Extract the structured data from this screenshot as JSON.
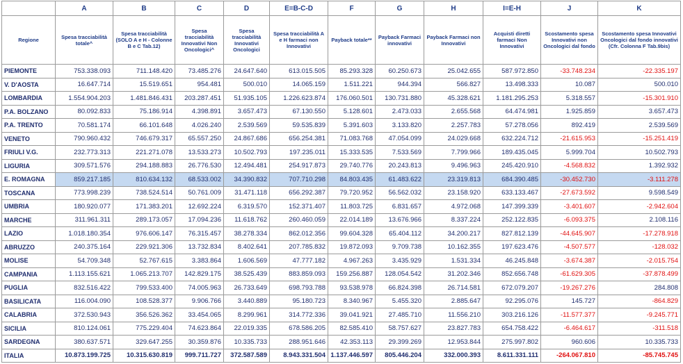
{
  "table": {
    "column_letters": [
      "A",
      "B",
      "C",
      "D",
      "E=B-C-D",
      "F",
      "G",
      "H",
      "I=E-H",
      "J",
      "K"
    ],
    "headers": [
      "Regione",
      "Spesa tracciabilità totale^",
      "Spesa tracciabilità (SOLO A e H - Colonne B e C Tab.12)",
      "Spesa tracciabilità Innovativi Non Oncologici^",
      "Spesa tracciabilità Innovativi Oncologici",
      "Spesa tracciabilità A e H farmaci non Innovativi",
      "Payback totale**",
      "Payback Farmaci innovativi",
      "Payback Farmaci non Innovativi",
      "Acquisti diretti farmaci Non Innovativi",
      "Scostamento spesa Innovativi non Oncologici dal fondo",
      "Scostamento spesa Innovativi Oncologici dal fondo innovativi (Cfr. Colonna F Tab.9bis)"
    ],
    "rows": [
      [
        "PIEMONTE",
        "753.338.093",
        "711.148.420",
        "73.485.276",
        "24.647.640",
        "613.015.505",
        "85.293.328",
        "60.250.673",
        "25.042.655",
        "587.972.850",
        "-33.748.234",
        "-22.335.197"
      ],
      [
        "V. D'AOSTA",
        "16.647.714",
        "15.519.651",
        "954.481",
        "500.010",
        "14.065.159",
        "1.511.221",
        "944.394",
        "566.827",
        "13.498.333",
        "10.087",
        "500.010"
      ],
      [
        "LOMBARDIA",
        "1.554.904.203",
        "1.481.846.431",
        "203.287.451",
        "51.935.105",
        "1.226.623.874",
        "176.060.501",
        "130.731.880",
        "45.328.621",
        "1.181.295.253",
        "5.318.557",
        "-15.301.910"
      ],
      [
        "P.A. BOLZANO",
        "80.092.833",
        "75.186.914",
        "4.398.891",
        "3.657.473",
        "67.130.550",
        "5.128.601",
        "2.473.033",
        "2.655.568",
        "64.474.981",
        "1.925.859",
        "3.657.473"
      ],
      [
        "P.A. TRENTO",
        "70.581.174",
        "66.101.648",
        "4.026.240",
        "2.539.569",
        "59.535.839",
        "5.391.603",
        "3.133.820",
        "2.257.783",
        "57.278.056",
        "892.419",
        "2.539.569"
      ],
      [
        "VENETO",
        "790.960.432",
        "746.679.317",
        "65.557.250",
        "24.867.686",
        "656.254.381",
        "71.083.768",
        "47.054.099",
        "24.029.668",
        "632.224.712",
        "-21.615.953",
        "-15.251.419"
      ],
      [
        "FRIULI V.G.",
        "232.773.313",
        "221.271.078",
        "13.533.273",
        "10.502.793",
        "197.235.011",
        "15.333.535",
        "7.533.569",
        "7.799.966",
        "189.435.045",
        "5.999.704",
        "10.502.793"
      ],
      [
        "LIGURIA",
        "309.571.576",
        "294.188.883",
        "26.776.530",
        "12.494.481",
        "254.917.873",
        "29.740.776",
        "20.243.813",
        "9.496.963",
        "245.420.910",
        "-4.568.832",
        "1.392.932"
      ],
      [
        "E. ROMAGNA",
        "859.217.185",
        "810.634.132",
        "68.533.002",
        "34.390.832",
        "707.710.298",
        "84.803.435",
        "61.483.622",
        "23.319.813",
        "684.390.485",
        "-30.452.730",
        "-3.111.278"
      ],
      [
        "TOSCANA",
        "773.998.239",
        "738.524.514",
        "50.761.009",
        "31.471.118",
        "656.292.387",
        "79.720.952",
        "56.562.032",
        "23.158.920",
        "633.133.467",
        "-27.673.592",
        "9.598.549"
      ],
      [
        "UMBRIA",
        "180.920.077",
        "171.383.201",
        "12.692.224",
        "6.319.570",
        "152.371.407",
        "11.803.725",
        "6.831.657",
        "4.972.068",
        "147.399.339",
        "-3.401.607",
        "-2.942.604"
      ],
      [
        "MARCHE",
        "311.961.311",
        "289.173.057",
        "17.094.236",
        "11.618.762",
        "260.460.059",
        "22.014.189",
        "13.676.966",
        "8.337.224",
        "252.122.835",
        "-6.093.375",
        "2.108.116"
      ],
      [
        "LAZIO",
        "1.018.180.354",
        "976.606.147",
        "76.315.457",
        "38.278.334",
        "862.012.356",
        "99.604.328",
        "65.404.112",
        "34.200.217",
        "827.812.139",
        "-44.645.907",
        "-17.278.918"
      ],
      [
        "ABRUZZO",
        "240.375.164",
        "229.921.306",
        "13.732.834",
        "8.402.641",
        "207.785.832",
        "19.872.093",
        "9.709.738",
        "10.162.355",
        "197.623.476",
        "-4.507.577",
        "-128.032"
      ],
      [
        "MOLISE",
        "54.709.348",
        "52.767.615",
        "3.383.864",
        "1.606.569",
        "47.777.182",
        "4.967.263",
        "3.435.929",
        "1.531.334",
        "46.245.848",
        "-3.674.387",
        "-2.015.754"
      ],
      [
        "CAMPANIA",
        "1.113.155.621",
        "1.065.213.707",
        "142.829.175",
        "38.525.439",
        "883.859.093",
        "159.256.887",
        "128.054.542",
        "31.202.346",
        "852.656.748",
        "-61.629.305",
        "-37.878.499"
      ],
      [
        "PUGLIA",
        "832.516.422",
        "799.533.400",
        "74.005.963",
        "26.733.649",
        "698.793.788",
        "93.538.978",
        "66.824.398",
        "26.714.581",
        "672.079.207",
        "-19.267.276",
        "284.808"
      ],
      [
        "BASILICATA",
        "116.004.090",
        "108.528.377",
        "9.906.766",
        "3.440.889",
        "95.180.723",
        "8.340.967",
        "5.455.320",
        "2.885.647",
        "92.295.076",
        "145.727",
        "-864.829"
      ],
      [
        "CALABRIA",
        "372.530.943",
        "356.526.362",
        "33.454.065",
        "8.299.961",
        "314.772.336",
        "39.041.921",
        "27.485.710",
        "11.556.210",
        "303.216.126",
        "-11.577.377",
        "-9.245.771"
      ],
      [
        "SICILIA",
        "810.124.061",
        "775.229.404",
        "74.623.864",
        "22.019.335",
        "678.586.205",
        "82.585.410",
        "58.757.627",
        "23.827.783",
        "654.758.422",
        "-6.464.617",
        "-311.518"
      ],
      [
        "SARDEGNA",
        "380.637.571",
        "329.647.255",
        "30.359.876",
        "10.335.733",
        "288.951.646",
        "42.353.113",
        "29.399.269",
        "12.953.844",
        "275.997.802",
        "960.606",
        "10.335.733"
      ],
      [
        "ITALIA",
        "10.873.199.725",
        "10.315.630.819",
        "999.711.727",
        "372.587.589",
        "8.943.331.504",
        "1.137.446.597",
        "805.446.204",
        "332.000.393",
        "8.611.331.111",
        "-264.067.810",
        "-85.745.745"
      ]
    ]
  }
}
